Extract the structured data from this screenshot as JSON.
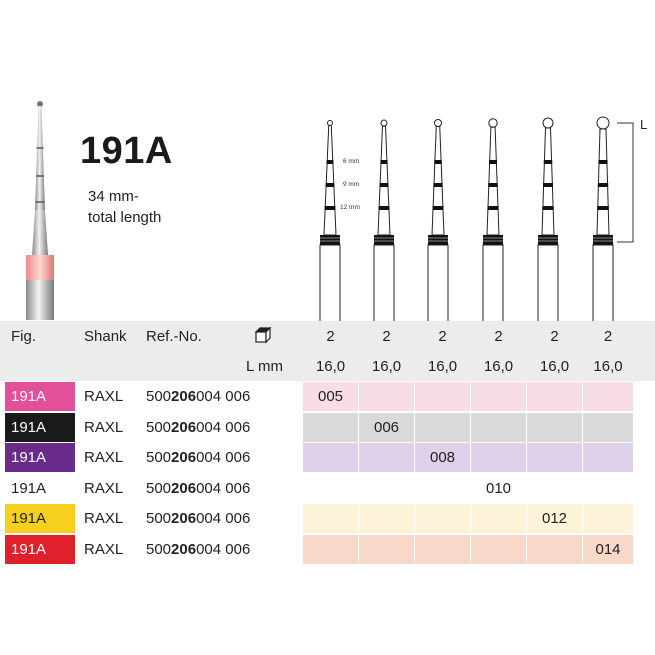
{
  "product": {
    "title": "191A",
    "description_line1": "34 mm-",
    "description_line2": "total length"
  },
  "diagram": {
    "length_label": "L",
    "depth_marks": [
      "6 mm",
      "9 mm",
      "12 mm"
    ]
  },
  "table": {
    "header1": {
      "fig": "Fig.",
      "shank": "Shank",
      "ref": "Ref.-No.",
      "pack_icon": "package-box-icon",
      "pack_values": [
        "2",
        "2",
        "2",
        "2",
        "2",
        "2"
      ]
    },
    "header2": {
      "lmm": "L mm",
      "lengths": [
        "16,0",
        "16,0",
        "16,0",
        "16,0",
        "16,0",
        "16,0"
      ]
    },
    "rows": [
      {
        "fig": "191A",
        "shank": "RAXL",
        "ref_a": "500",
        "ref_b": "206",
        "ref_c": "004 006",
        "size": "005",
        "col": 0,
        "fig_bg": "#e2509a",
        "fig_color": "#ffffff",
        "row_bg": "#f8dce6"
      },
      {
        "fig": "191A",
        "shank": "RAXL",
        "ref_a": "500",
        "ref_b": "206",
        "ref_c": "004 006",
        "size": "006",
        "col": 1,
        "fig_bg": "#1a1a1a",
        "fig_color": "#ffffff",
        "row_bg": "#d9d9d9"
      },
      {
        "fig": "191A",
        "shank": "RAXL",
        "ref_a": "500",
        "ref_b": "206",
        "ref_c": "004 006",
        "size": "008",
        "col": 2,
        "fig_bg": "#6a2a8a",
        "fig_color": "#ffffff",
        "row_bg": "#ddd0e8"
      },
      {
        "fig": "191A",
        "shank": "RAXL",
        "ref_a": "500",
        "ref_b": "206",
        "ref_c": "004 006",
        "size": "010",
        "col": 3,
        "fig_bg": "#ffffff",
        "fig_color": "#222222",
        "row_bg": "#ffffff"
      },
      {
        "fig": "191A",
        "shank": "RAXL",
        "ref_a": "500",
        "ref_b": "206",
        "ref_c": "004 006",
        "size": "012",
        "col": 4,
        "fig_bg": "#f7cf1e",
        "fig_color": "#222222",
        "row_bg": "#fdf3d8"
      },
      {
        "fig": "191A",
        "shank": "RAXL",
        "ref_a": "500",
        "ref_b": "206",
        "ref_c": "004 006",
        "size": "014",
        "col": 5,
        "fig_bg": "#e0202a",
        "fig_color": "#ffffff",
        "row_bg": "#f8d8c8"
      }
    ]
  }
}
